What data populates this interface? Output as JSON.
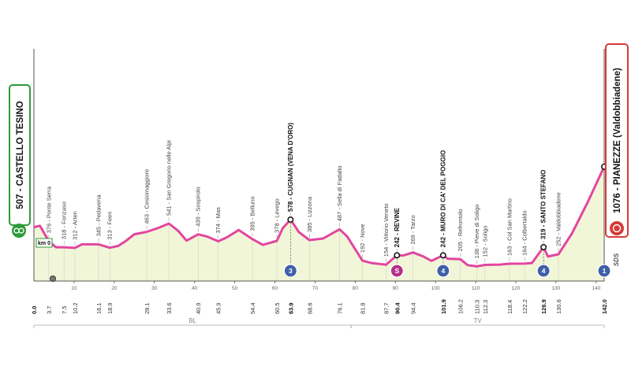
{
  "chart_data": {
    "type": "area",
    "start": {
      "name": "507 - CASTELLO TESINO",
      "km0": "km 0"
    },
    "finish": {
      "name": "1076 - PIANEZZE (Valdobbiadene)",
      "sponsor": "SDS"
    },
    "xlim": [
      0,
      142
    ],
    "ylim": [
      0,
      1150
    ],
    "x_ticks": [
      10,
      20,
      30,
      40,
      50,
      60,
      70,
      80,
      90,
      100,
      110,
      120,
      130,
      140
    ],
    "x_tick_labels": [
      "10",
      "20",
      "30",
      "40",
      "50",
      "60",
      "70",
      "80",
      "90",
      "100",
      "110",
      "120",
      "130",
      "140"
    ],
    "profile_km": [
      0,
      1.5,
      3.7,
      5.5,
      7.5,
      10.2,
      12,
      14,
      16.1,
      18.9,
      21,
      23,
      25,
      28.1,
      31,
      33.6,
      36,
      38,
      40.9,
      43,
      45.9,
      48,
      51,
      54.4,
      57,
      60.5,
      62,
      63.9,
      66,
      68.6,
      72,
      76.1,
      78,
      81.8,
      84,
      87.7,
      90.4,
      92,
      94.4,
      97,
      99,
      101.9,
      103,
      106.2,
      108,
      110.3,
      112.3,
      116,
      118.4,
      122.2,
      124,
      126.9,
      128,
      130.6,
      134,
      138,
      142
    ],
    "profile_alt": [
      507,
      520,
      376,
      318,
      318,
      312,
      345,
      345,
      345,
      313,
      330,
      380,
      440,
      463,
      500,
      541,
      470,
      380,
      439,
      420,
      374,
      410,
      480,
      395,
      340,
      378,
      500,
      578,
      460,
      385,
      400,
      487,
      420,
      192,
      170,
      154,
      242,
      240,
      269,
      230,
      190,
      242,
      210,
      205,
      150,
      138,
      152,
      155,
      163,
      164,
      170,
      319,
      230,
      252,
      450,
      750,
      1076
    ],
    "waypoints": [
      {
        "km": 3.7,
        "alt": 376,
        "label": "376 - Ponte Serra",
        "climb": false
      },
      {
        "km": 7.5,
        "alt": 318,
        "label": "318 - Fonzaso",
        "climb": false
      },
      {
        "km": 10.2,
        "alt": 312,
        "label": "312 - Arten",
        "climb": false
      },
      {
        "km": 16.1,
        "alt": 345,
        "label": "345 - Pedavena",
        "climb": false
      },
      {
        "km": 18.9,
        "alt": 313,
        "label": "313 - Feen",
        "climb": false
      },
      {
        "km": 28.1,
        "alt": 463,
        "label": "463 - Cesiomaggiore",
        "climb": false
      },
      {
        "km": 33.6,
        "alt": 541,
        "label": "541 - San Gregorio nelle Alpi",
        "climb": false
      },
      {
        "km": 40.9,
        "alt": 439,
        "label": "439 - Sospirolo",
        "climb": false
      },
      {
        "km": 45.9,
        "alt": 374,
        "label": "374 - Mas",
        "climb": false
      },
      {
        "km": 54.4,
        "alt": 395,
        "label": "395 - Belluno",
        "climb": false
      },
      {
        "km": 60.5,
        "alt": 378,
        "label": "378 - Levego",
        "climb": false
      },
      {
        "km": 63.9,
        "alt": 578,
        "label": "578 - CUGNAN (VENA D'ORO)",
        "climb": true,
        "cat": "3",
        "badge_color": "#3f5fa8"
      },
      {
        "km": 68.6,
        "alt": 385,
        "label": "385 - Lizzona",
        "climb": false
      },
      {
        "km": 76.1,
        "alt": 487,
        "label": "487 - Sella di Fadalto",
        "climb": false
      },
      {
        "km": 81.8,
        "alt": 192,
        "label": "192 - Nove",
        "climb": false
      },
      {
        "km": 87.7,
        "alt": 154,
        "label": "154 - Vittorio Veneto",
        "climb": false
      },
      {
        "km": 90.4,
        "alt": 242,
        "label": "242 - REVINE",
        "climb": true,
        "cat": "S",
        "badge_color": "#b4318c"
      },
      {
        "km": 94.4,
        "alt": 269,
        "label": "269 - Tarzo",
        "climb": false
      },
      {
        "km": 101.9,
        "alt": 242,
        "label": "242 - MURO DI CA' DEL POGGIO",
        "climb": true,
        "cat": "4",
        "badge_color": "#3f5fa8"
      },
      {
        "km": 106.2,
        "alt": 205,
        "label": "205 - Refrontolo",
        "climb": false
      },
      {
        "km": 110.3,
        "alt": 138,
        "label": "138 - Pieve di Soligo",
        "climb": false
      },
      {
        "km": 112.3,
        "alt": 152,
        "label": "152 - Soligo",
        "climb": false
      },
      {
        "km": 118.4,
        "alt": 163,
        "label": "163 - Col San Martino",
        "climb": false
      },
      {
        "km": 122.2,
        "alt": 164,
        "label": "164 - Colbertaldo",
        "climb": false
      },
      {
        "km": 126.9,
        "alt": 319,
        "label": "319 - SANTO STEFANO",
        "climb": true,
        "cat": "4",
        "badge_color": "#3f5fa8"
      },
      {
        "km": 130.6,
        "alt": 252,
        "label": "252 - Valdobbiadene",
        "climb": false
      }
    ],
    "finish_badge": {
      "km": 142,
      "cat": "1",
      "badge_color": "#3f5fa8"
    },
    "km_markers": [
      {
        "km": 0,
        "label": "0.0",
        "major": true
      },
      {
        "km": 3.7,
        "label": "3.7",
        "major": false
      },
      {
        "km": 7.5,
        "label": "7.5",
        "major": false
      },
      {
        "km": 10.2,
        "label": "10.2",
        "major": false
      },
      {
        "km": 16.1,
        "label": "16.1",
        "major": false
      },
      {
        "km": 18.9,
        "label": "18.9",
        "major": false
      },
      {
        "km": 28.1,
        "label": "28.1",
        "major": false
      },
      {
        "km": 33.6,
        "label": "33.6",
        "major": false
      },
      {
        "km": 40.9,
        "label": "40.9",
        "major": false
      },
      {
        "km": 45.9,
        "label": "45.9",
        "major": false
      },
      {
        "km": 54.4,
        "label": "54.4",
        "major": false
      },
      {
        "km": 60.5,
        "label": "60.5",
        "major": false
      },
      {
        "km": 63.9,
        "label": "63.9",
        "major": true
      },
      {
        "km": 68.6,
        "label": "68.6",
        "major": false
      },
      {
        "km": 76.1,
        "label": "76.1",
        "major": false
      },
      {
        "km": 81.8,
        "label": "81.8",
        "major": false
      },
      {
        "km": 87.7,
        "label": "87.7",
        "major": false
      },
      {
        "km": 90.4,
        "label": "90.4",
        "major": true
      },
      {
        "km": 94.4,
        "label": "94.4",
        "major": false
      },
      {
        "km": 101.9,
        "label": "101.9",
        "major": true
      },
      {
        "km": 106.2,
        "label": "106.2",
        "major": false
      },
      {
        "km": 110.3,
        "label": "110.3",
        "major": false
      },
      {
        "km": 112.3,
        "label": "112.3",
        "major": false
      },
      {
        "km": 118.4,
        "label": "118.4",
        "major": false
      },
      {
        "km": 122.2,
        "label": "122.2",
        "major": false
      },
      {
        "km": 126.9,
        "label": "126.9",
        "major": true
      },
      {
        "km": 130.6,
        "label": "130.6",
        "major": false
      },
      {
        "km": 142,
        "label": "142.0",
        "major": true
      }
    ],
    "regions": [
      {
        "from": 0,
        "to": 79,
        "label": "BL"
      },
      {
        "from": 79,
        "to": 142,
        "label": "TV"
      }
    ],
    "colors": {
      "profile_line": "#e2469f",
      "profile_fill": "#f2f6d8",
      "start_green": "#2f9a3a",
      "finish_red": "#d63a3a",
      "axis": "#555555",
      "grid": "#cfd3c0"
    }
  }
}
